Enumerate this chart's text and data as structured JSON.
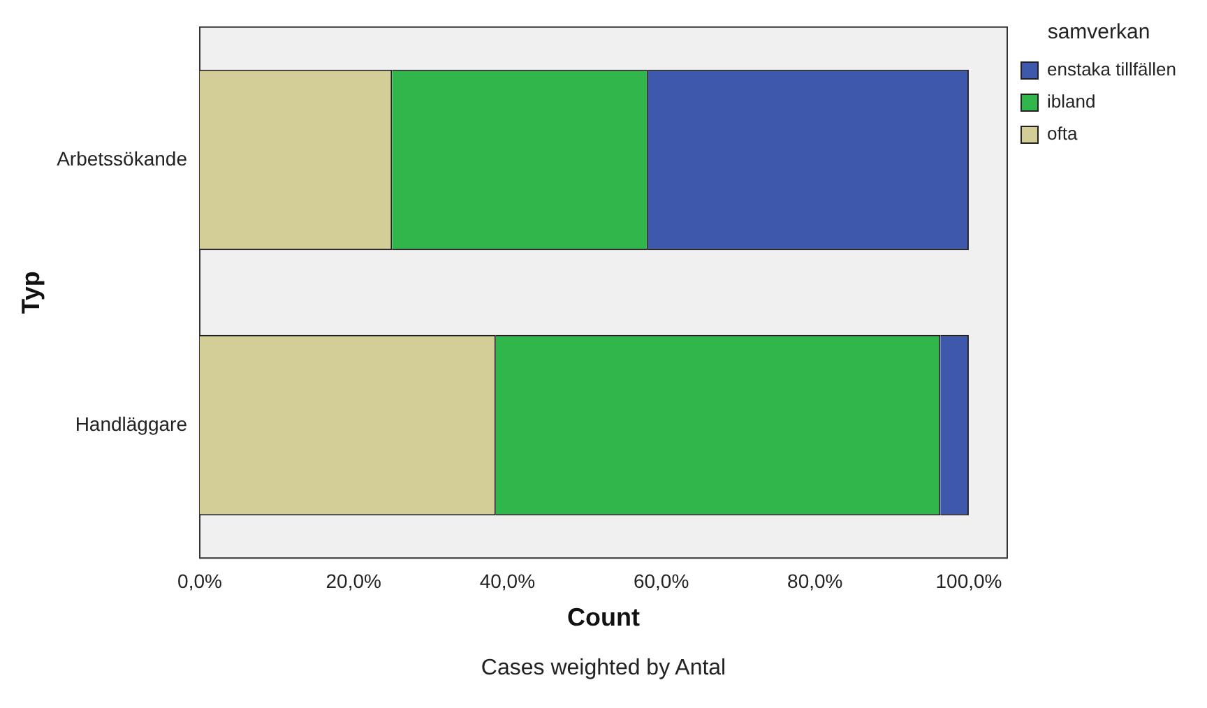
{
  "chart_data": {
    "type": "bar",
    "orientation": "horizontal",
    "stacked": true,
    "xlabel": "Count",
    "ylabel": "Typ",
    "legend_title": "samverkan",
    "legend": "top right",
    "grid": false,
    "categories": [
      "Arbetssökande",
      "Handläggare"
    ],
    "series": [
      {
        "name": "ofta",
        "color": "#d3ce97",
        "values": [
          25.0,
          38.5
        ]
      },
      {
        "name": "ibland",
        "color": "#30b64a",
        "values": [
          33.3,
          57.8
        ]
      },
      {
        "name": "enstaka tillfällen",
        "color": "#3e58ac",
        "values": [
          41.7,
          3.7
        ]
      }
    ],
    "xlim": [
      0,
      105
    ],
    "xticks": [
      {
        "value": 0,
        "label": "0,0%"
      },
      {
        "value": 20,
        "label": "20,0%"
      },
      {
        "value": 40,
        "label": "40,0%"
      },
      {
        "value": 60,
        "label": "60,0%"
      },
      {
        "value": 80,
        "label": "80,0%"
      },
      {
        "value": 100,
        "label": "100,0%"
      }
    ],
    "annotations": [
      "Cases weighted by Antal"
    ]
  }
}
